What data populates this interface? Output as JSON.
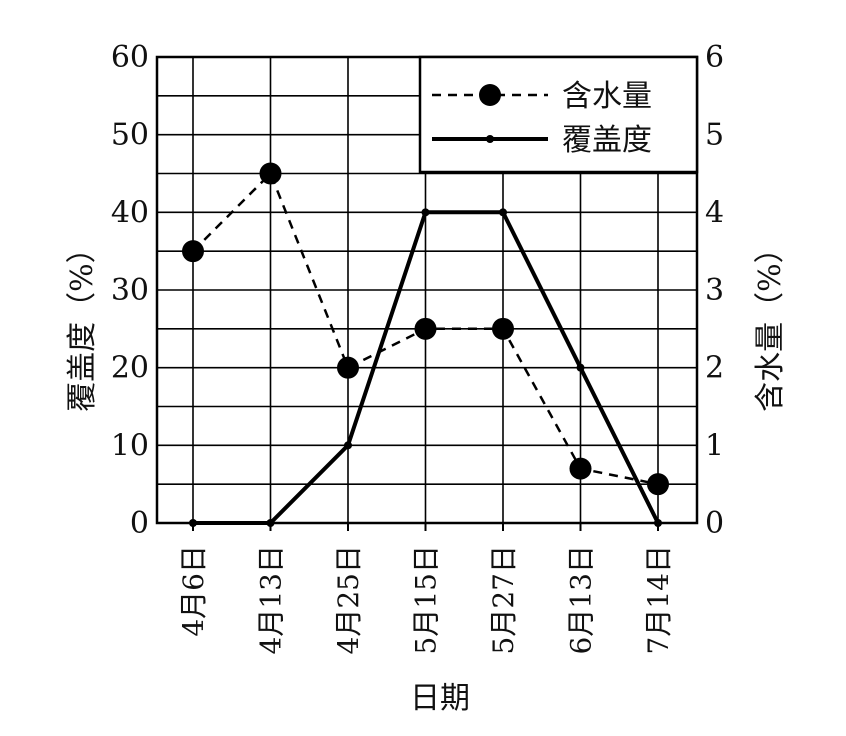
{
  "chart_data": {
    "type": "line",
    "x_categories": [
      "4月6日",
      "4月13日",
      "4月25日",
      "5月15日",
      "5月27日",
      "6月13日",
      "7月14日"
    ],
    "xlabel": "日期",
    "ylabel_left": "覆盖度（%）",
    "ylabel_right": "含水量（%）",
    "ylim_left": [
      0,
      60
    ],
    "ylim_right": [
      0,
      6
    ],
    "yticks_left": [
      "0",
      "10",
      "20",
      "30",
      "40",
      "50",
      "60"
    ],
    "yticks_right": [
      "0",
      "1",
      "2",
      "3",
      "4",
      "5",
      "6"
    ],
    "grid": true,
    "legend_position": "top-right",
    "series": [
      {
        "name": "含水量",
        "axis": "right",
        "style": "dashed",
        "marker": "large-dot",
        "values": [
          3.5,
          4.5,
          2.0,
          2.5,
          2.5,
          0.7,
          0.5
        ]
      },
      {
        "name": "覆盖度",
        "axis": "left",
        "style": "solid",
        "marker": "small-dot",
        "values": [
          0,
          0,
          10,
          40,
          40,
          20,
          0
        ]
      }
    ],
    "colors": {
      "line": "#000000",
      "grid": "#000000"
    }
  }
}
